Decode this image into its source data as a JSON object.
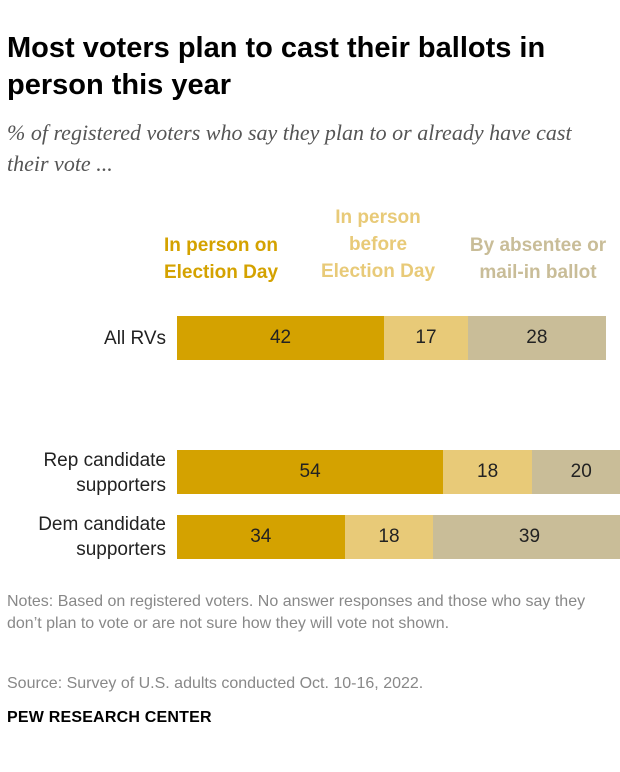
{
  "title": "Most voters plan to cast their ballots in person this year",
  "subtitle": "% of registered voters who say they plan to or already have cast their vote ...",
  "chart_data": {
    "type": "bar",
    "orientation": "horizontal",
    "stacked": true,
    "categories": [
      "All RVs",
      "Rep candidate supporters",
      "Dem candidate supporters"
    ],
    "series": [
      {
        "name": "In person on Election Day",
        "color": "#d4a200",
        "values": [
          42,
          54,
          34
        ]
      },
      {
        "name": "In person before Election Day",
        "color": "#e8ca78",
        "values": [
          17,
          18,
          18
        ]
      },
      {
        "name": "By absentee or mail-in ballot",
        "color": "#c9bd98",
        "values": [
          28,
          20,
          39
        ]
      }
    ],
    "xlim": [
      0,
      100
    ],
    "legend_position": "top",
    "grid": false
  },
  "notes": "Notes: Based on registered voters. No answer responses and those who say they don’t plan to vote or are not sure how they will vote not shown.",
  "source": "Source: Survey of U.S. adults conducted Oct. 10-16, 2022.",
  "brand": "PEW RESEARCH CENTER"
}
